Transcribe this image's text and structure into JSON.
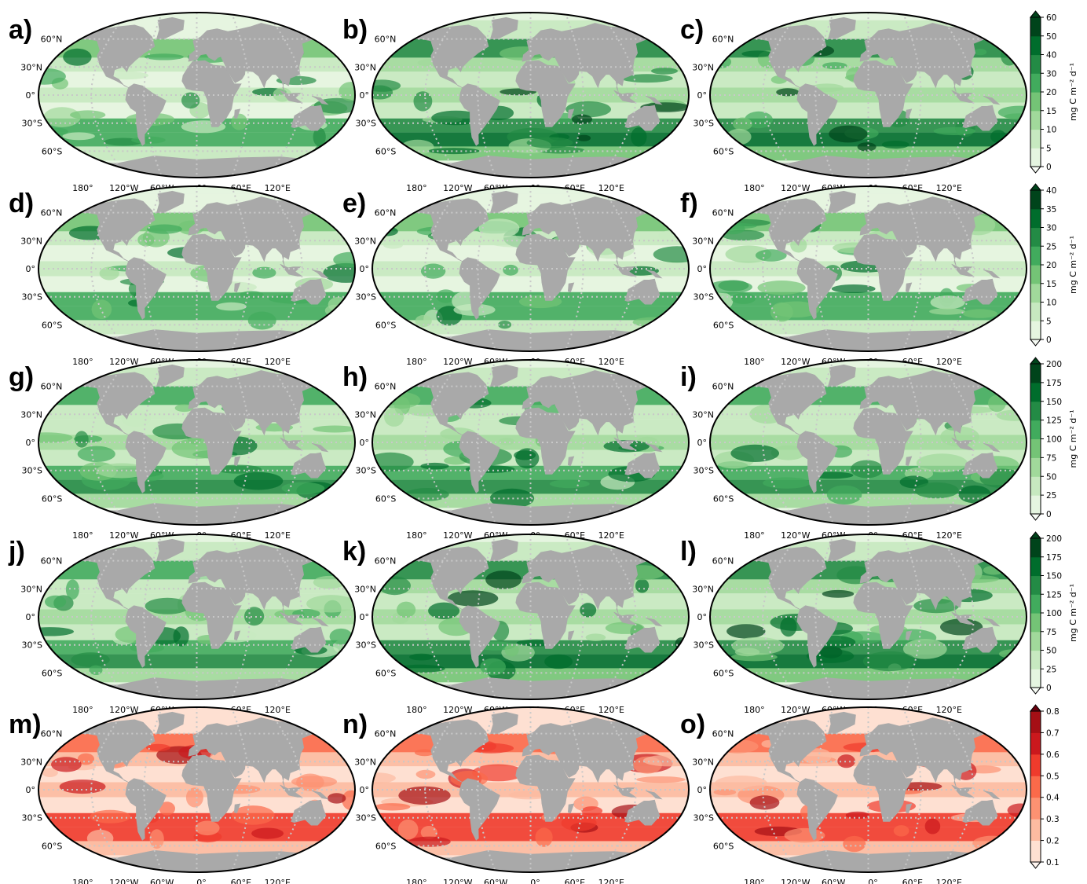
{
  "figure": {
    "panel_letters": [
      "a)",
      "b)",
      "c)",
      "d)",
      "e)",
      "f)",
      "g)",
      "h)",
      "i)",
      "j)",
      "k)",
      "l)",
      "m)",
      "n)",
      "o)"
    ],
    "lat_labels": [
      "60°N",
      "30°N",
      "0°",
      "30°S",
      "60°S"
    ],
    "lon_labels": [
      "180°",
      "120°W",
      "60°W",
      "0°",
      "60°E",
      "120°E"
    ],
    "colorbars": [
      {
        "row": 0,
        "colormap": "Greens",
        "ticks": [
          "0",
          "5",
          "10",
          "15",
          "20",
          "30",
          "40",
          "50",
          "60"
        ],
        "unit": "mg C m⁻² d⁻¹"
      },
      {
        "row": 1,
        "colormap": "Greens",
        "ticks": [
          "0",
          "5",
          "10",
          "15",
          "20",
          "25",
          "30",
          "35",
          "40"
        ],
        "unit": "mg C m⁻² d⁻¹"
      },
      {
        "row": 2,
        "colormap": "Greens",
        "ticks": [
          "0",
          "25",
          "50",
          "75",
          "100",
          "125",
          "150",
          "175",
          "200"
        ],
        "unit": "mg C m⁻² d⁻¹"
      },
      {
        "row": 3,
        "colormap": "Greens",
        "ticks": [
          "0",
          "25",
          "50",
          "75",
          "100",
          "125",
          "150",
          "175",
          "200"
        ],
        "unit": "mg C m⁻² d⁻¹"
      },
      {
        "row": 4,
        "colormap": "Reds",
        "ticks": [
          "0.1",
          "0.2",
          "0.3",
          "0.4",
          "0.5",
          "0.6",
          "0.7",
          "0.8"
        ],
        "unit": ""
      }
    ],
    "colors": {
      "land": "#a9a9a9",
      "greens": [
        "#f7fcf5",
        "#e5f5e0",
        "#c7e9c0",
        "#a1d99b",
        "#74c476",
        "#41ab5d",
        "#238b45",
        "#006d2c",
        "#00441b"
      ],
      "reds": [
        "#fff5f0",
        "#fee0d2",
        "#fcbba1",
        "#fc9272",
        "#fb6a4a",
        "#ef3b2c",
        "#cb181d",
        "#a50f15",
        "#67000d"
      ]
    }
  }
}
